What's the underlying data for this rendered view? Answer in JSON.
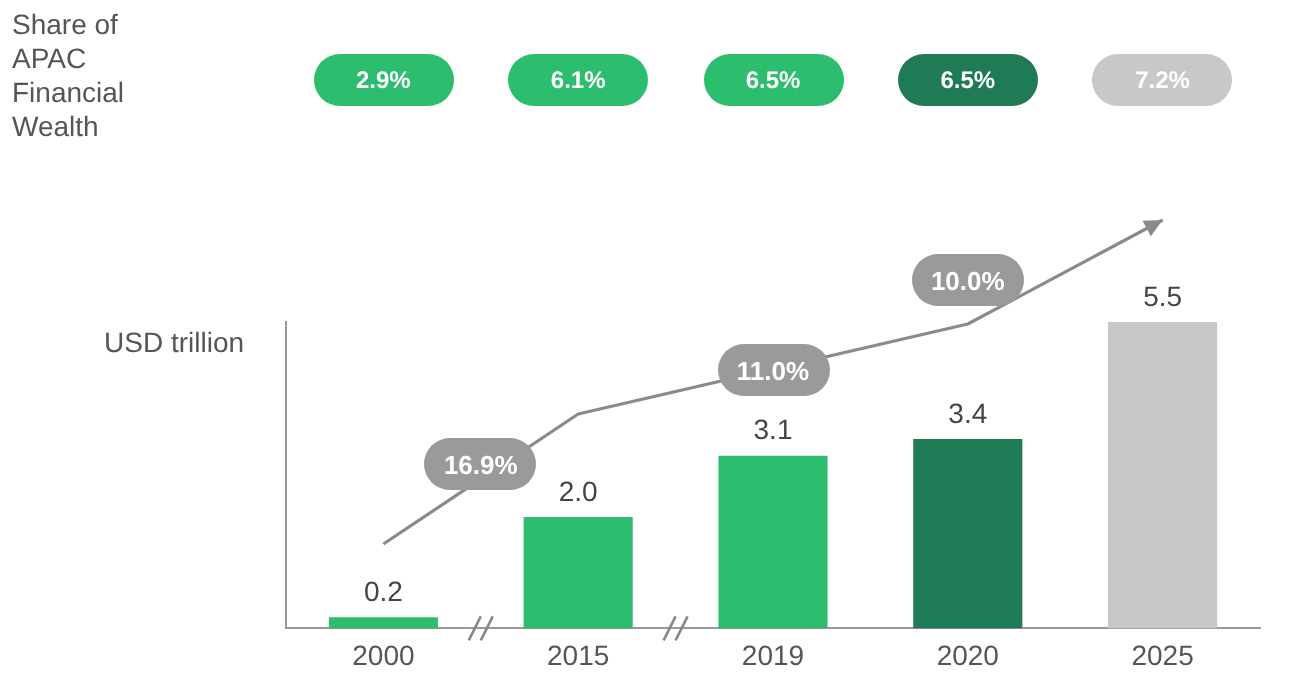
{
  "chart_data": {
    "type": "bar",
    "ylabel": "USD trillion",
    "categories": [
      "2000",
      "2015",
      "2019",
      "2020",
      "2025"
    ],
    "values": [
      0.2,
      2.0,
      3.1,
      3.4,
      5.5
    ],
    "value_labels": [
      "0.2",
      "2.0",
      "3.1",
      "3.4",
      "5.5"
    ],
    "colors": [
      "#2dbd6e",
      "#2dbd6e",
      "#2dbd6e",
      "#1e7b55",
      "#c8c8c8"
    ],
    "ylim": [
      0,
      5.5
    ],
    "tick_labels": "x",
    "annotations": [
      "Share of APAC Financial Wealth",
      "2.9%",
      "6.1%",
      "6.5%",
      "6.5%",
      "7.2%",
      "16.9%",
      "11.0%",
      "10.0%"
    ]
  }
}
